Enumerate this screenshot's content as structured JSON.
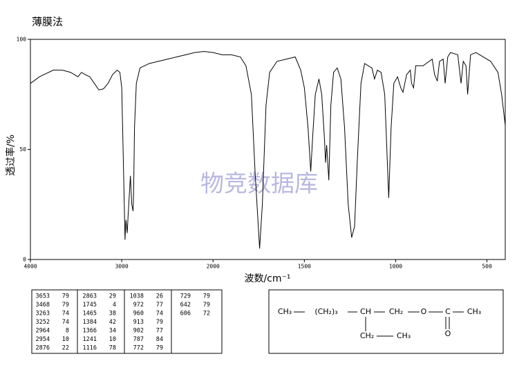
{
  "chart_data": {
    "type": "line",
    "title": "薄膜法",
    "x_label": "波数/cm⁻¹",
    "y_label": "透过率/%",
    "watermark": "物竞数据库",
    "x": [
      4000,
      3900,
      3750,
      3650,
      3560,
      3480,
      3440,
      3400,
      3350,
      3300,
      3250,
      3200,
      3150,
      3100,
      3050,
      3020,
      3000,
      2985,
      2964,
      2954,
      2940,
      2930,
      2905,
      2890,
      2876,
      2870,
      2860,
      2840,
      2800,
      2700,
      2600,
      2500,
      2400,
      2300,
      2200,
      2100,
      2000,
      1950,
      1900,
      1850,
      1820,
      1790,
      1770,
      1745,
      1730,
      1710,
      1690,
      1650,
      1600,
      1550,
      1520,
      1500,
      1480,
      1465,
      1455,
      1440,
      1420,
      1405,
      1390,
      1384,
      1378,
      1366,
      1355,
      1340,
      1320,
      1300,
      1280,
      1260,
      1241,
      1225,
      1210,
      1190,
      1170,
      1150,
      1130,
      1116,
      1100,
      1080,
      1060,
      1038,
      1025,
      1010,
      990,
      972,
      960,
      940,
      920,
      913,
      902,
      890,
      850,
      800,
      787,
      772,
      760,
      740,
      729,
      715,
      700,
      660,
      642,
      630,
      615,
      606,
      590,
      560,
      520,
      480,
      440,
      420,
      400
    ],
    "series": [
      {
        "name": "透过率",
        "color": "#000000",
        "values": [
          80,
          83,
          86,
          86,
          85,
          83,
          85,
          84,
          83,
          80,
          77,
          77.5,
          80,
          84,
          86,
          85,
          78,
          50,
          9,
          18,
          12,
          20,
          38,
          25,
          22,
          30,
          60,
          80,
          87,
          89,
          90,
          91,
          92,
          93,
          94,
          94.5,
          94,
          93,
          93,
          92,
          88,
          75,
          40,
          5,
          25,
          70,
          85,
          90,
          91,
          92,
          86,
          78,
          60,
          40,
          55,
          75,
          82,
          75,
          55,
          44,
          52,
          36,
          70,
          85,
          87,
          82,
          60,
          25,
          10,
          15,
          45,
          80,
          89,
          88,
          87,
          82,
          86,
          85,
          75,
          28,
          60,
          80,
          83,
          78,
          76,
          84,
          86,
          80,
          78,
          88,
          88,
          91,
          84,
          81,
          90,
          91,
          80,
          92,
          94,
          93,
          80,
          90,
          88,
          75,
          93,
          94,
          92,
          90,
          85,
          75,
          61
        ]
      }
    ],
    "xlim": [
      4000,
      400
    ],
    "x_scale_change": 2000,
    "xticks": [
      4000,
      3000,
      2000,
      1500,
      1000,
      500
    ],
    "ylim": [
      0,
      100
    ],
    "yticks": [
      0,
      50,
      100
    ]
  },
  "peak_table": {
    "columns": [
      [
        [
          3653,
          79
        ],
        [
          3468,
          79
        ],
        [
          3263,
          74
        ],
        [
          3252,
          74
        ],
        [
          2964,
          8
        ],
        [
          2954,
          10
        ],
        [
          2876,
          22
        ]
      ],
      [
        [
          2863,
          29
        ],
        [
          1745,
          4
        ],
        [
          1465,
          38
        ],
        [
          1384,
          42
        ],
        [
          1366,
          34
        ],
        [
          1241,
          10
        ],
        [
          1116,
          78
        ]
      ],
      [
        [
          1038,
          26
        ],
        [
          972,
          77
        ],
        [
          960,
          74
        ],
        [
          913,
          79
        ],
        [
          902,
          77
        ],
        [
          787,
          84
        ],
        [
          772,
          79
        ]
      ],
      [
        [
          729,
          79
        ],
        [
          642,
          79
        ],
        [
          606,
          72
        ]
      ]
    ]
  },
  "structure": {
    "main": [
      "CH₃",
      "(CH₂)₃",
      "CH",
      "CH₂",
      "O",
      "C",
      "CH₃"
    ],
    "branch": [
      "CH₂",
      "CH₃"
    ],
    "carbonyl": "O"
  }
}
